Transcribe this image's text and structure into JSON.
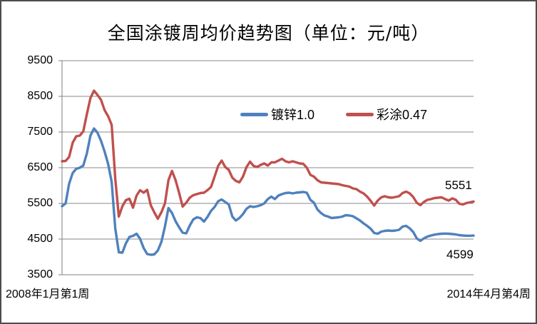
{
  "chart_data": {
    "type": "line",
    "title": "全国涂镀周均价趋势图（单位：元/吨）",
    "grid": true,
    "legend_position": "inside-top",
    "x_axis": {
      "start_label": "2008年1月第1周",
      "end_label": "2014年4月第4周"
    },
    "y_axis": {
      "min": 3500,
      "max": 9500,
      "tick_step": 1000,
      "ticks": [
        9500,
        8500,
        7500,
        6500,
        5500,
        4500,
        3500
      ]
    },
    "series": [
      {
        "name": "镀锌1.0",
        "color": "#4F81BD",
        "end_label": "4599",
        "end_value": 4599,
        "values": [
          5420,
          5500,
          6050,
          6350,
          6470,
          6500,
          6560,
          6900,
          7400,
          7600,
          7480,
          7250,
          6950,
          6600,
          6100,
          4800,
          4130,
          4120,
          4380,
          4560,
          4590,
          4650,
          4510,
          4250,
          4080,
          4060,
          4070,
          4180,
          4420,
          4850,
          5370,
          5230,
          5000,
          4830,
          4680,
          4660,
          4880,
          5050,
          5110,
          5090,
          4990,
          5120,
          5290,
          5400,
          5560,
          5610,
          5540,
          5470,
          5130,
          5020,
          5090,
          5200,
          5350,
          5420,
          5400,
          5420,
          5450,
          5500,
          5620,
          5690,
          5620,
          5720,
          5760,
          5790,
          5800,
          5780,
          5800,
          5810,
          5820,
          5800,
          5600,
          5520,
          5330,
          5230,
          5160,
          5130,
          5090,
          5100,
          5110,
          5130,
          5170,
          5160,
          5140,
          5080,
          5020,
          4940,
          4870,
          4790,
          4670,
          4650,
          4710,
          4730,
          4740,
          4730,
          4740,
          4760,
          4850,
          4870,
          4800,
          4700,
          4520,
          4450,
          4520,
          4570,
          4600,
          4625,
          4640,
          4650,
          4655,
          4650,
          4640,
          4630,
          4610,
          4600,
          4595,
          4595,
          4599
        ]
      },
      {
        "name": "彩涂0.47",
        "color": "#C0504D",
        "end_label": "5551",
        "end_value": 5551,
        "values": [
          6680,
          6690,
          6800,
          7200,
          7380,
          7400,
          7520,
          8000,
          8450,
          8660,
          8540,
          8400,
          8110,
          7940,
          7700,
          6200,
          5130,
          5420,
          5590,
          5630,
          5380,
          5720,
          5870,
          5800,
          5880,
          5450,
          5250,
          5070,
          5250,
          5500,
          6150,
          6410,
          6150,
          5800,
          5410,
          5520,
          5660,
          5730,
          5760,
          5790,
          5800,
          5870,
          5960,
          6250,
          6550,
          6700,
          6520,
          6440,
          6220,
          6130,
          6090,
          6250,
          6520,
          6670,
          6550,
          6520,
          6580,
          6620,
          6560,
          6650,
          6650,
          6700,
          6750,
          6680,
          6650,
          6680,
          6650,
          6620,
          6610,
          6500,
          6300,
          6250,
          6150,
          6090,
          6080,
          6070,
          6060,
          6050,
          6040,
          6010,
          5990,
          5970,
          5920,
          5900,
          5830,
          5780,
          5690,
          5570,
          5440,
          5580,
          5670,
          5700,
          5670,
          5660,
          5680,
          5700,
          5790,
          5830,
          5780,
          5680,
          5520,
          5450,
          5540,
          5600,
          5620,
          5650,
          5660,
          5670,
          5620,
          5580,
          5640,
          5600,
          5490,
          5470,
          5510,
          5530,
          5551
        ]
      }
    ],
    "colors": {
      "gridline": "#888888",
      "axis": "#808080",
      "frame_border": "#4d4d4d"
    }
  }
}
